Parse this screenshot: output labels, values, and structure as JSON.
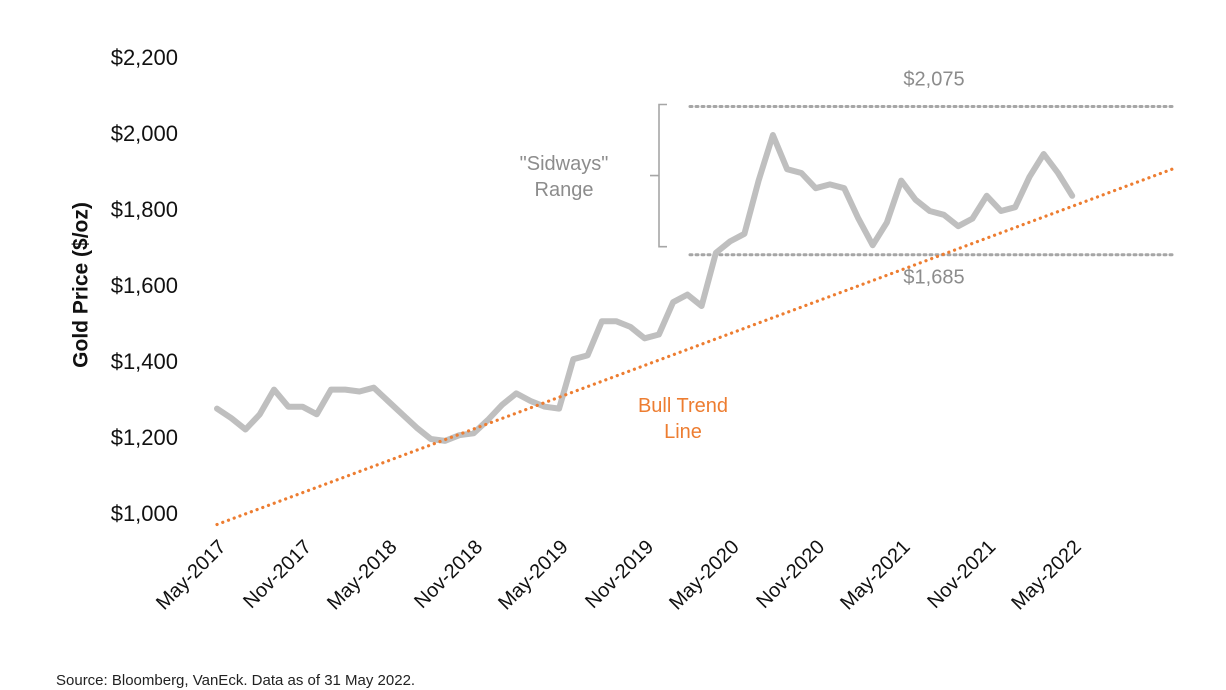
{
  "chart_data": {
    "type": "line",
    "title": "",
    "ylabel": "Gold Price ($/oz)",
    "xlabel": "",
    "ylim": [
      1000,
      2200
    ],
    "xlim": [
      "2017-05",
      "2022-12"
    ],
    "yticks": [
      1000,
      1200,
      1400,
      1600,
      1800,
      2000,
      2200
    ],
    "ytick_labels": [
      "$1,000",
      "$1,200",
      "$1,400",
      "$1,600",
      "$1,800",
      "$2,000",
      "$2,200"
    ],
    "xticks": [
      "2017-05",
      "2017-11",
      "2018-05",
      "2018-11",
      "2019-05",
      "2019-11",
      "2020-05",
      "2020-11",
      "2021-05",
      "2021-11",
      "2022-05"
    ],
    "xtick_labels": [
      "May-2017",
      "Nov-2017",
      "May-2018",
      "Nov-2018",
      "May-2019",
      "Nov-2019",
      "May-2020",
      "Nov-2020",
      "May-2021",
      "Nov-2021",
      "May-2022"
    ],
    "grid": false,
    "legend": "none",
    "series": [
      {
        "color": "#bfbfbf",
        "style": "solid",
        "x": [
          "2017-05",
          "2017-06",
          "2017-07",
          "2017-08",
          "2017-09",
          "2017-10",
          "2017-11",
          "2017-12",
          "2018-01",
          "2018-02",
          "2018-03",
          "2018-04",
          "2018-05",
          "2018-06",
          "2018-07",
          "2018-08",
          "2018-09",
          "2018-10",
          "2018-11",
          "2018-12",
          "2019-01",
          "2019-02",
          "2019-03",
          "2019-04",
          "2019-05",
          "2019-06",
          "2019-07",
          "2019-08",
          "2019-09",
          "2019-10",
          "2019-11",
          "2019-12",
          "2020-01",
          "2020-02",
          "2020-03",
          "2020-04",
          "2020-05",
          "2020-06",
          "2020-07",
          "2020-08",
          "2020-09",
          "2020-10",
          "2020-11",
          "2020-12",
          "2021-01",
          "2021-02",
          "2021-03",
          "2021-04",
          "2021-05",
          "2021-06",
          "2021-07",
          "2021-08",
          "2021-09",
          "2021-10",
          "2021-11",
          "2021-12",
          "2022-01",
          "2022-02",
          "2022-03",
          "2022-04",
          "2022-05"
        ],
        "values": [
          1280,
          1255,
          1225,
          1265,
          1330,
          1285,
          1285,
          1265,
          1330,
          1330,
          1325,
          1335,
          1300,
          1265,
          1230,
          1200,
          1195,
          1210,
          1215,
          1250,
          1290,
          1320,
          1300,
          1285,
          1280,
          1410,
          1420,
          1510,
          1510,
          1495,
          1465,
          1475,
          1560,
          1580,
          1550,
          1690,
          1720,
          1740,
          1880,
          2000,
          1910,
          1900,
          1860,
          1870,
          1860,
          1780,
          1710,
          1770,
          1880,
          1830,
          1800,
          1790,
          1760,
          1780,
          1840,
          1800,
          1810,
          1890,
          1950,
          1900,
          1840
        ]
      },
      {
        "name": "Bull Trend Line",
        "color": "#ed7d31",
        "style": "dotted",
        "x": [
          "2017-05",
          "2022-12"
        ],
        "values": [
          975,
          1910
        ]
      }
    ],
    "reference_lines": [
      {
        "value": 2075,
        "label": "$2,075",
        "color": "#a6a6a6",
        "style": "dotted"
      },
      {
        "value": 1685,
        "label": "$1,685",
        "color": "#a6a6a6",
        "style": "dotted"
      }
    ],
    "annotations": [
      {
        "text_lines": [
          "\"Sidways\"",
          "Range"
        ],
        "color": "#8c8c8c"
      },
      {
        "text_lines": [
          "Bull Trend",
          "Line"
        ],
        "color": "#ed7d31"
      }
    ]
  },
  "source_note": "Source: Bloomberg, VanEck. Data as of 31 May 2022."
}
